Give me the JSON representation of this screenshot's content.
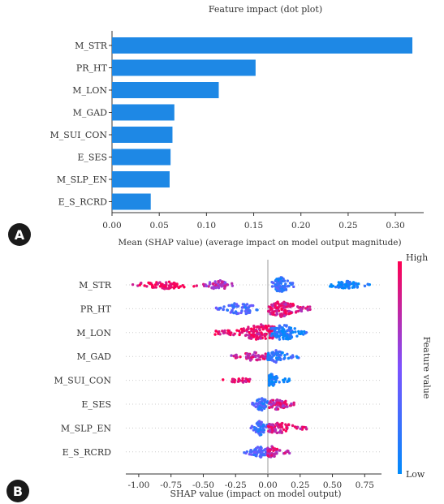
{
  "chart_data": [
    {
      "panel": "A",
      "type": "bar",
      "orientation": "horizontal",
      "title": "Feature impact (dot plot)",
      "xlabel": "Mean (SHAP value) (average impact on model output magnitude)",
      "categories": [
        "M_STR",
        "PR_HT",
        "M_LON",
        "M_GAD",
        "M_SUI_CON",
        "E_SES",
        "M_SLP_EN",
        "E_S_RCRD"
      ],
      "values": [
        0.318,
        0.152,
        0.113,
        0.066,
        0.064,
        0.062,
        0.061,
        0.041
      ],
      "xlim": [
        0,
        0.33
      ],
      "xticks": [
        "0.00",
        "0.05",
        "0.10",
        "0.15",
        "0.20",
        "0.25",
        "0.30"
      ],
      "bar_color": "#1E88E5",
      "grid": false
    },
    {
      "panel": "B",
      "type": "scatter",
      "subtype": "beeswarm",
      "xlabel": "SHAP value (impact on model output)",
      "categories": [
        "M_STR",
        "PR_HT",
        "M_LON",
        "M_GAD",
        "M_SUI_CON",
        "E_SES",
        "M_SLP_EN",
        "E_S_RCRD"
      ],
      "xlim": [
        -1.1,
        0.88
      ],
      "xticks": [
        "-1.00",
        "-0.75",
        "-0.50",
        "-0.25",
        "0.00",
        "0.25",
        "0.50",
        "0.75"
      ],
      "colorbar": {
        "label": "Feature value",
        "high": "High",
        "low": "Low",
        "high_color": "#FF0052",
        "low_color": "#008BFB"
      },
      "series": [
        {
          "feature": "M_STR",
          "clusters": [
            {
              "min": -1.05,
              "max": -0.55,
              "center": -0.8,
              "value": 0.95,
              "n": 70,
              "spread": 5
            },
            {
              "min": -0.5,
              "max": -0.27,
              "center": -0.38,
              "value": 0.7,
              "n": 50,
              "spread": 6
            },
            {
              "min": 0.03,
              "max": 0.2,
              "center": 0.1,
              "value": 0.2,
              "n": 90,
              "spread": 10
            },
            {
              "min": 0.48,
              "max": 0.8,
              "center": 0.62,
              "value": 0.05,
              "n": 70,
              "spread": 5
            }
          ]
        },
        {
          "feature": "PR_HT",
          "clusters": [
            {
              "min": -0.4,
              "max": -0.08,
              "center": -0.22,
              "value": 0.3,
              "n": 70,
              "spread": 8
            },
            {
              "min": 0.0,
              "max": 0.33,
              "center": 0.1,
              "value": 0.85,
              "n": 130,
              "spread": 10
            }
          ]
        },
        {
          "feature": "M_LON",
          "clusters": [
            {
              "min": -0.42,
              "max": 0.05,
              "center": -0.05,
              "value": 0.9,
              "n": 150,
              "spread": 10
            },
            {
              "min": 0.02,
              "max": 0.3,
              "center": 0.12,
              "value": 0.15,
              "n": 110,
              "spread": 10
            }
          ]
        },
        {
          "feature": "M_GAD",
          "clusters": [
            {
              "min": -0.3,
              "max": 0.0,
              "center": -0.1,
              "value": 0.8,
              "n": 60,
              "spread": 6
            },
            {
              "min": 0.0,
              "max": 0.24,
              "center": 0.05,
              "value": 0.2,
              "n": 80,
              "spread": 8
            }
          ]
        },
        {
          "feature": "M_SUI_CON",
          "clusters": [
            {
              "min": -0.35,
              "max": -0.1,
              "center": -0.22,
              "value": 0.95,
              "n": 30,
              "spread": 3
            },
            {
              "min": 0.01,
              "max": 0.17,
              "center": 0.03,
              "value": 0.05,
              "n": 50,
              "spread": 8
            }
          ]
        },
        {
          "feature": "E_SES",
          "clusters": [
            {
              "min": -0.12,
              "max": 0.0,
              "center": -0.05,
              "value": 0.25,
              "n": 60,
              "spread": 9
            },
            {
              "min": 0.0,
              "max": 0.23,
              "center": 0.07,
              "value": 0.8,
              "n": 70,
              "spread": 7
            }
          ]
        },
        {
          "feature": "M_SLP_EN",
          "clusters": [
            {
              "min": -0.14,
              "max": 0.0,
              "center": -0.06,
              "value": 0.25,
              "n": 60,
              "spread": 9
            },
            {
              "min": 0.0,
              "max": 0.3,
              "center": 0.08,
              "value": 0.85,
              "n": 80,
              "spread": 7
            }
          ]
        },
        {
          "feature": "E_S_RCRD",
          "clusters": [
            {
              "min": -0.2,
              "max": 0.0,
              "center": -0.06,
              "value": 0.3,
              "n": 60,
              "spread": 7
            },
            {
              "min": 0.0,
              "max": 0.18,
              "center": 0.03,
              "value": 0.8,
              "n": 60,
              "spread": 7
            }
          ]
        }
      ]
    }
  ],
  "panel_labels": {
    "a": "A",
    "b": "B"
  }
}
